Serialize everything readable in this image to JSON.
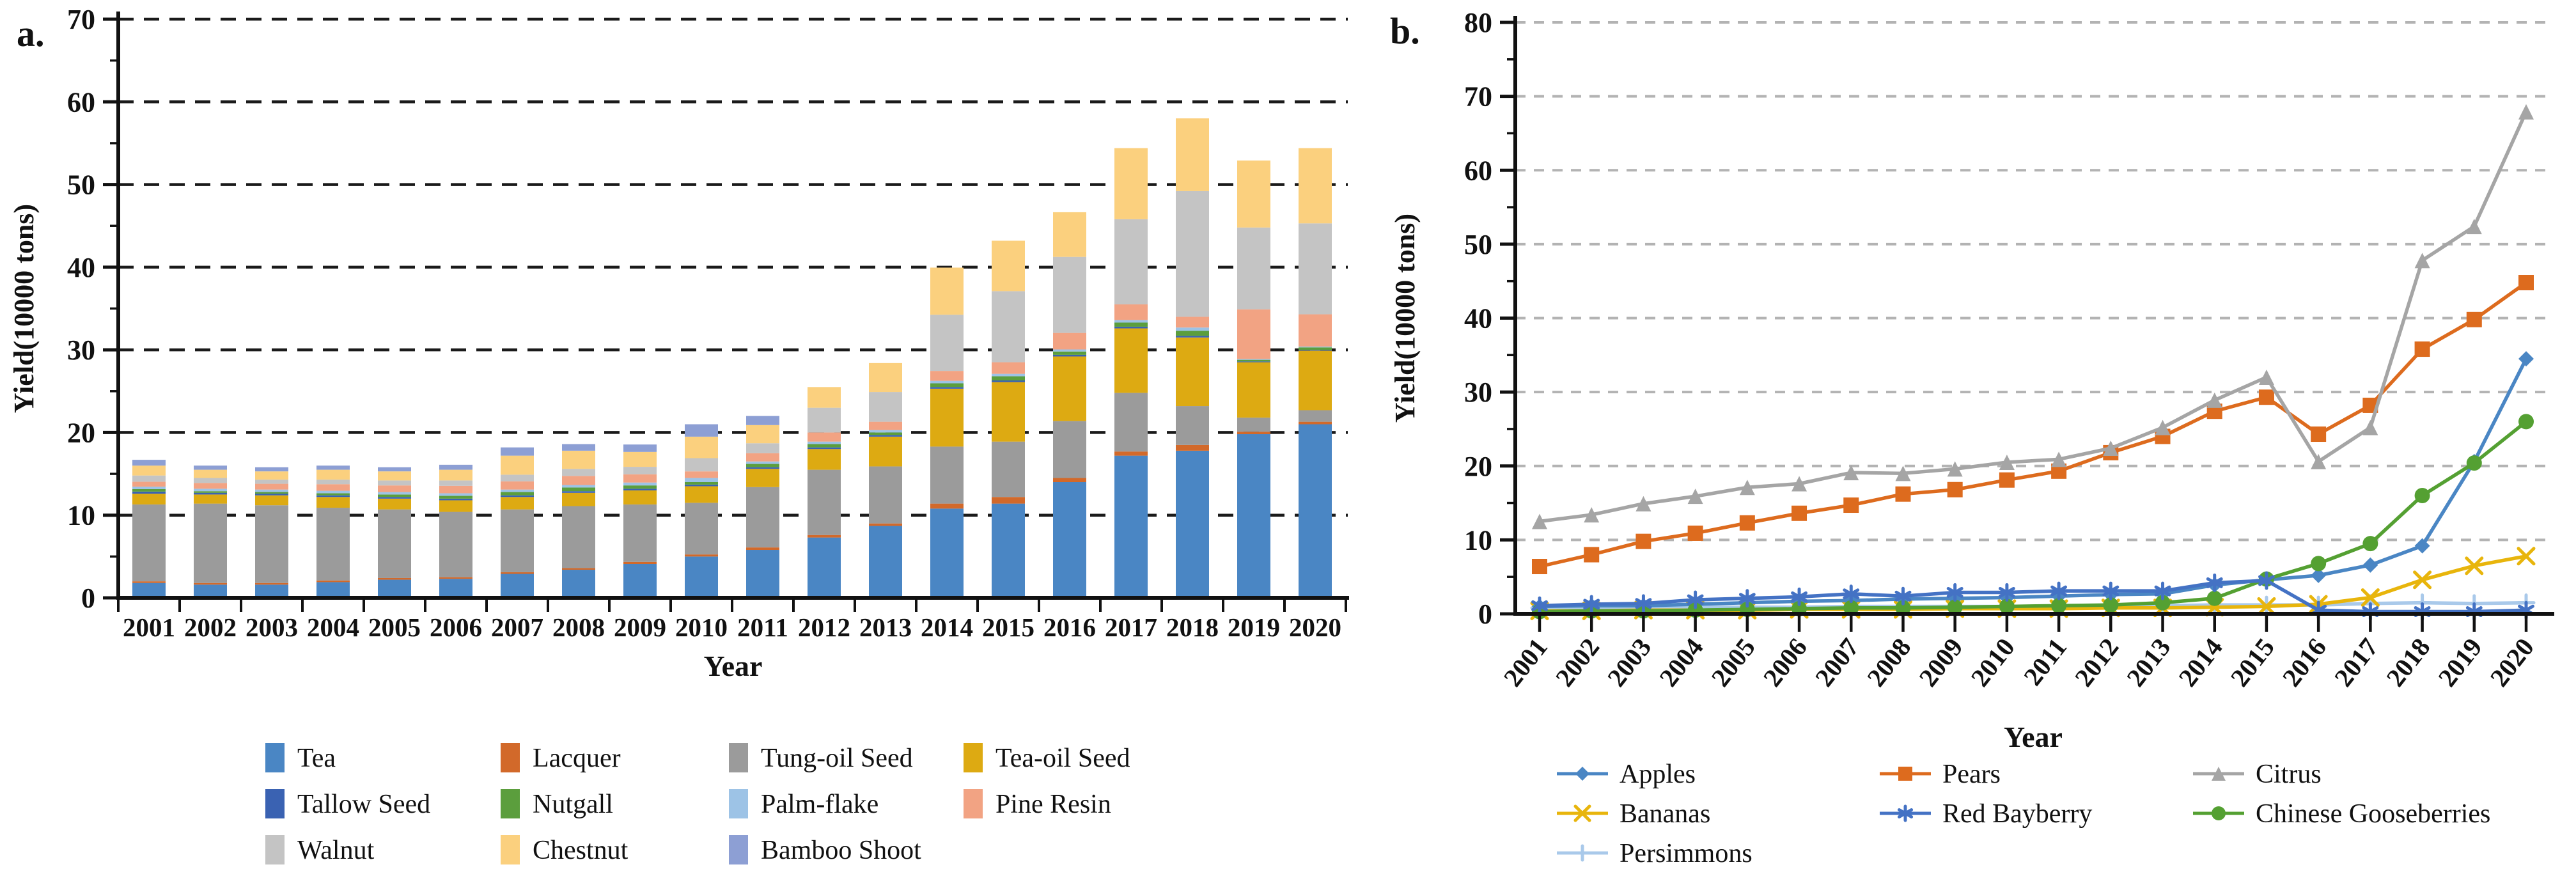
{
  "page": {
    "background": "#ffffff",
    "panels": [
      {
        "label": "a."
      },
      {
        "label": "b."
      }
    ]
  },
  "chart_data": [
    {
      "type": "bar",
      "stacked": true,
      "panel_label": "a.",
      "xlabel": "Year",
      "ylabel": "Yield(10000 tons)",
      "ylim": [
        0,
        70
      ],
      "ytick_step": 10,
      "grid": "dashed-black",
      "legend_position": "bottom",
      "legend_columns": 4,
      "categories": [
        "2001",
        "2002",
        "2003",
        "2004",
        "2005",
        "2006",
        "2007",
        "2008",
        "2009",
        "2010",
        "2011",
        "2012",
        "2013",
        "2014",
        "2015",
        "2016",
        "2017",
        "2018",
        "2019",
        "2020"
      ],
      "series": [
        {
          "name": "Tea",
          "color": "#4a86c4",
          "values": [
            1.8,
            1.6,
            1.6,
            1.9,
            2.2,
            2.3,
            2.9,
            3.4,
            4.1,
            5.0,
            5.8,
            7.3,
            8.7,
            10.8,
            11.4,
            14.0,
            17.2,
            17.8,
            19.8,
            21.0
          ]
        },
        {
          "name": "Lacquer",
          "color": "#d2692a",
          "values": [
            0.2,
            0.2,
            0.2,
            0.2,
            0.2,
            0.2,
            0.2,
            0.2,
            0.25,
            0.25,
            0.3,
            0.3,
            0.3,
            0.6,
            0.8,
            0.5,
            0.5,
            0.7,
            0.3,
            0.3
          ]
        },
        {
          "name": "Tung-oil Seed",
          "color": "#9b9b9b",
          "values": [
            9.3,
            9.6,
            9.4,
            8.8,
            8.3,
            7.9,
            7.6,
            7.5,
            6.95,
            6.25,
            7.3,
            7.9,
            6.9,
            6.9,
            6.7,
            6.9,
            7.1,
            4.7,
            1.7,
            1.4
          ]
        },
        {
          "name": "Tea-oil Seed",
          "color": "#ddaa12",
          "values": [
            1.3,
            1.1,
            1.2,
            1.3,
            1.3,
            1.4,
            1.5,
            1.6,
            1.7,
            2.0,
            2.2,
            2.5,
            3.6,
            7.0,
            7.2,
            7.8,
            7.8,
            8.3,
            6.7,
            7.2
          ]
        },
        {
          "name": "Tallow Seed",
          "color": "#3a62b2",
          "values": [
            0.25,
            0.2,
            0.2,
            0.2,
            0.2,
            0.2,
            0.2,
            0.2,
            0.2,
            0.2,
            0.2,
            0.2,
            0.2,
            0.2,
            0.2,
            0.2,
            0.2,
            0.2,
            0.1,
            0.1
          ]
        },
        {
          "name": "Nutgall",
          "color": "#5b9e3d",
          "values": [
            0.3,
            0.2,
            0.2,
            0.25,
            0.3,
            0.35,
            0.4,
            0.45,
            0.4,
            0.3,
            0.4,
            0.4,
            0.3,
            0.45,
            0.5,
            0.4,
            0.5,
            0.6,
            0.2,
            0.3
          ]
        },
        {
          "name": "Palm-flake",
          "color": "#9dc3e6",
          "values": [
            0.3,
            0.3,
            0.3,
            0.3,
            0.3,
            0.3,
            0.3,
            0.3,
            0.35,
            0.5,
            0.3,
            0.3,
            0.3,
            0.3,
            0.3,
            0.25,
            0.3,
            0.4,
            0.1,
            0.1
          ]
        },
        {
          "name": "Pine Resin",
          "color": "#f2a383",
          "values": [
            0.6,
            0.7,
            0.7,
            0.8,
            0.8,
            0.9,
            1.0,
            1.1,
            1.0,
            0.8,
            1.0,
            1.1,
            1.0,
            1.2,
            1.4,
            2.0,
            1.9,
            1.3,
            6.0,
            3.9
          ]
        },
        {
          "name": "Walnut",
          "color": "#c4c4c4",
          "values": [
            0.75,
            0.6,
            0.5,
            0.55,
            0.6,
            0.65,
            0.8,
            0.85,
            0.9,
            1.6,
            1.2,
            3.0,
            3.6,
            6.8,
            8.6,
            9.2,
            10.3,
            15.2,
            9.9,
            11.0
          ]
        },
        {
          "name": "Chestnut",
          "color": "#fbd07e",
          "values": [
            1.2,
            1.0,
            1.0,
            1.2,
            1.1,
            1.3,
            2.3,
            2.2,
            1.8,
            2.6,
            2.2,
            2.5,
            3.5,
            5.7,
            6.1,
            5.4,
            8.6,
            8.8,
            8.1,
            9.1
          ]
        },
        {
          "name": "Bamboo Shoot",
          "color": "#8d9fd4",
          "values": [
            0.7,
            0.5,
            0.5,
            0.5,
            0.5,
            0.6,
            1.0,
            0.8,
            0.9,
            1.5,
            1.1,
            0,
            0,
            0,
            0,
            0,
            0,
            0,
            0,
            0
          ]
        }
      ]
    },
    {
      "type": "line",
      "panel_label": "b.",
      "xlabel": "Year",
      "ylabel": "Yield(10000 tons)",
      "ylim": [
        0,
        80
      ],
      "ytick_step": 10,
      "grid": "dashed-gray",
      "legend_position": "bottom",
      "legend_columns": 3,
      "x": [
        "2001",
        "2002",
        "2003",
        "2004",
        "2005",
        "2006",
        "2007",
        "2008",
        "2009",
        "2010",
        "2011",
        "2012",
        "2013",
        "2014",
        "2015",
        "2016",
        "2017",
        "2018",
        "2019",
        "2020"
      ],
      "series": [
        {
          "name": "Apples",
          "color": "#4a86c4",
          "marker": "diamond",
          "values": [
            1.0,
            1.1,
            1.1,
            1.3,
            1.5,
            1.7,
            1.8,
            2.0,
            2.1,
            2.2,
            2.4,
            2.6,
            2.7,
            3.9,
            4.6,
            5.2,
            6.6,
            9.2,
            20.6,
            34.5
          ]
        },
        {
          "name": "Pears",
          "color": "#dd6b1e",
          "marker": "square",
          "values": [
            6.4,
            8.0,
            9.8,
            10.9,
            12.3,
            13.6,
            14.7,
            16.2,
            16.8,
            18.1,
            19.3,
            21.8,
            24.0,
            27.4,
            29.3,
            24.3,
            28.2,
            35.8,
            39.8,
            44.8
          ]
        },
        {
          "name": "Citrus",
          "color": "#a5a5a5",
          "marker": "triangle",
          "values": [
            12.5,
            13.4,
            14.9,
            15.9,
            17.1,
            17.6,
            19.1,
            19.0,
            19.6,
            20.5,
            20.9,
            22.4,
            25.2,
            28.9,
            32.0,
            20.6,
            25.2,
            47.8,
            52.4,
            67.9
          ]
        },
        {
          "name": "Bananas",
          "color": "#e8b50c",
          "marker": "x",
          "values": [
            0.4,
            0.4,
            0.5,
            0.5,
            0.5,
            0.6,
            0.6,
            0.6,
            0.7,
            0.7,
            0.7,
            0.8,
            0.8,
            0.9,
            1.0,
            1.3,
            2.2,
            4.6,
            6.5,
            7.8
          ]
        },
        {
          "name": "Red Bayberry",
          "color": "#4472c4",
          "marker": "asterisk",
          "values": [
            1.1,
            1.3,
            1.4,
            1.9,
            2.1,
            2.3,
            2.7,
            2.4,
            2.9,
            2.9,
            3.1,
            3.1,
            3.1,
            4.2,
            4.5,
            0.5,
            0.3,
            0.3,
            0.3,
            0.5
          ]
        },
        {
          "name": "Chinese Gooseberries",
          "color": "#54a032",
          "marker": "circle",
          "values": [
            0.3,
            0.4,
            0.4,
            0.5,
            0.6,
            0.7,
            0.8,
            0.8,
            0.9,
            1.0,
            1.1,
            1.2,
            1.5,
            2.1,
            4.7,
            6.8,
            9.5,
            16.0,
            20.4,
            26.0
          ]
        },
        {
          "name": "Persimmons",
          "color": "#a9c9ea",
          "marker": "plus",
          "values": [
            0.8,
            0.8,
            0.8,
            0.9,
            0.9,
            0.9,
            1.0,
            1.0,
            1.0,
            1.0,
            1.0,
            1.1,
            1.1,
            1.2,
            1.2,
            1.2,
            1.4,
            1.5,
            1.4,
            1.5
          ]
        }
      ],
      "draw_order": [
        "Persimmons",
        "Bananas",
        "Apples",
        "Chinese Gooseberries",
        "Red Bayberry",
        "Pears",
        "Citrus"
      ]
    }
  ]
}
